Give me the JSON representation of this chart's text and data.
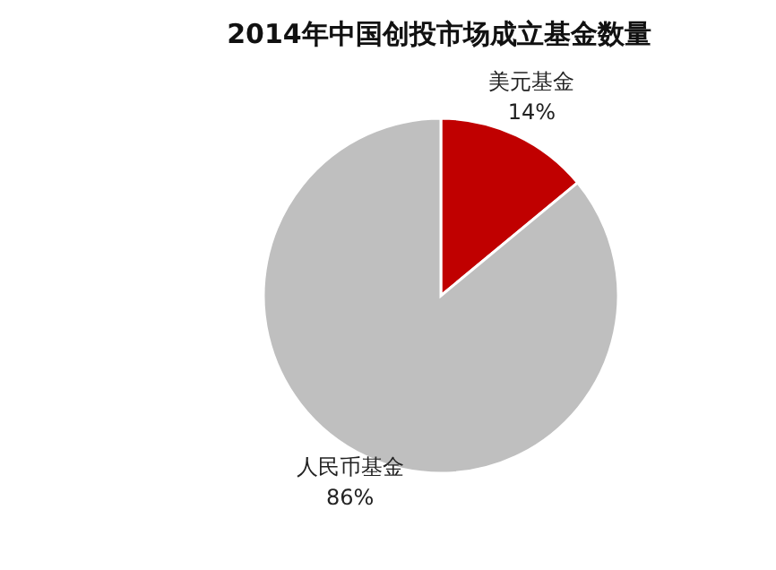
{
  "chart_data": {
    "type": "pie",
    "title": "2014年中国创投市场成立基金数量",
    "categories": [
      "美元基金",
      "人民币基金"
    ],
    "values": [
      14,
      86
    ],
    "colors": [
      "#c00000",
      "#bfbfbf"
    ],
    "value_labels": [
      "14%",
      "86%"
    ]
  }
}
